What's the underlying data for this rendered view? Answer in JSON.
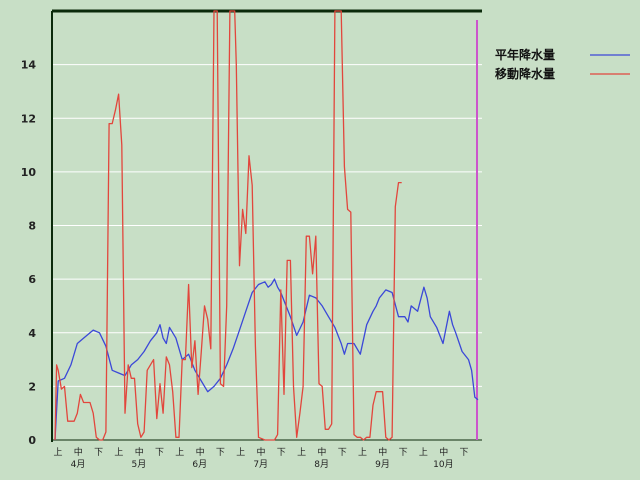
{
  "chart_data": {
    "type": "line",
    "ylim": [
      0,
      16
    ],
    "y_ticks": [
      "0",
      "2",
      "4",
      "6",
      "8",
      "10",
      "12",
      "14"
    ],
    "grid": true,
    "legend_position": "top-right",
    "x_period_labels": [
      "上",
      "中",
      "下",
      "上",
      "中",
      "下",
      "上",
      "中",
      "下",
      "上",
      "中",
      "下",
      "上",
      "中",
      "下",
      "上",
      "中",
      "下",
      "上",
      "中",
      "下"
    ],
    "month_labels": [
      "4月",
      "5月",
      "6月",
      "7月",
      "8月",
      "9月",
      "10月"
    ],
    "series": [
      {
        "name": "平年降水量",
        "color": "#3b48d8",
        "points": [
          [
            0,
            0
          ],
          [
            1,
            2.2
          ],
          [
            3,
            2.3
          ],
          [
            5,
            2.8
          ],
          [
            7,
            3.6
          ],
          [
            9,
            3.8
          ],
          [
            12,
            4.1
          ],
          [
            14,
            4.0
          ],
          [
            16,
            3.5
          ],
          [
            18,
            2.6
          ],
          [
            20,
            2.5
          ],
          [
            22,
            2.4
          ],
          [
            24,
            2.8
          ],
          [
            26,
            3.0
          ],
          [
            28,
            3.3
          ],
          [
            30,
            3.7
          ],
          [
            32,
            4.0
          ],
          [
            33,
            4.3
          ],
          [
            34,
            3.8
          ],
          [
            35,
            3.6
          ],
          [
            36,
            4.2
          ],
          [
            38,
            3.8
          ],
          [
            40,
            3.0
          ],
          [
            42,
            3.2
          ],
          [
            44,
            2.6
          ],
          [
            46,
            2.2
          ],
          [
            48,
            1.8
          ],
          [
            50,
            2.0
          ],
          [
            52,
            2.3
          ],
          [
            54,
            2.8
          ],
          [
            56,
            3.4
          ],
          [
            58,
            4.1
          ],
          [
            60,
            4.8
          ],
          [
            62,
            5.5
          ],
          [
            64,
            5.8
          ],
          [
            66,
            5.9
          ],
          [
            67,
            5.7
          ],
          [
            68,
            5.8
          ],
          [
            69,
            6.0
          ],
          [
            70,
            5.7
          ],
          [
            71,
            5.5
          ],
          [
            72,
            5.2
          ],
          [
            74,
            4.6
          ],
          [
            76,
            3.9
          ],
          [
            78,
            4.4
          ],
          [
            80,
            5.4
          ],
          [
            82,
            5.3
          ],
          [
            84,
            5.0
          ],
          [
            86,
            4.6
          ],
          [
            88,
            4.2
          ],
          [
            90,
            3.6
          ],
          [
            91,
            3.2
          ],
          [
            92,
            3.6
          ],
          [
            94,
            3.6
          ],
          [
            96,
            3.2
          ],
          [
            98,
            4.3
          ],
          [
            100,
            4.8
          ],
          [
            101,
            5.0
          ],
          [
            102,
            5.3
          ],
          [
            104,
            5.6
          ],
          [
            106,
            5.5
          ],
          [
            108,
            4.6
          ],
          [
            110,
            4.6
          ],
          [
            111,
            4.4
          ],
          [
            112,
            5.0
          ],
          [
            114,
            4.8
          ],
          [
            116,
            5.7
          ],
          [
            117,
            5.3
          ],
          [
            118,
            4.6
          ],
          [
            120,
            4.2
          ],
          [
            122,
            3.6
          ],
          [
            124,
            4.8
          ],
          [
            125,
            4.3
          ],
          [
            126,
            4.0
          ],
          [
            128,
            3.3
          ],
          [
            130,
            3.0
          ],
          [
            131,
            2.6
          ],
          [
            132,
            1.6
          ],
          [
            133,
            1.5
          ]
        ]
      },
      {
        "name": "移動降水量",
        "color": "#e2463c",
        "points": [
          [
            0,
            0
          ],
          [
            0.5,
            2.8
          ],
          [
            1,
            2.6
          ],
          [
            2,
            1.9
          ],
          [
            3,
            2.0
          ],
          [
            4,
            0.7
          ],
          [
            6,
            0.7
          ],
          [
            7,
            1.0
          ],
          [
            8,
            1.7
          ],
          [
            9,
            1.4
          ],
          [
            10,
            1.4
          ],
          [
            11,
            1.4
          ],
          [
            12,
            1.0
          ],
          [
            13,
            0.1
          ],
          [
            14,
            0.0
          ],
          [
            15,
            0.0
          ],
          [
            16,
            0.3
          ],
          [
            17,
            11.8
          ],
          [
            18,
            11.8
          ],
          [
            19,
            12.3
          ],
          [
            20,
            12.9
          ],
          [
            21,
            11.0
          ],
          [
            22,
            1.0
          ],
          [
            23,
            2.8
          ],
          [
            24,
            2.3
          ],
          [
            25,
            2.3
          ],
          [
            26,
            0.6
          ],
          [
            27,
            0.1
          ],
          [
            28,
            0.3
          ],
          [
            29,
            2.6
          ],
          [
            30,
            2.8
          ],
          [
            31,
            3.0
          ],
          [
            32,
            0.8
          ],
          [
            33,
            2.1
          ],
          [
            34,
            1.0
          ],
          [
            35,
            3.1
          ],
          [
            36,
            2.8
          ],
          [
            37,
            1.8
          ],
          [
            38,
            0.1
          ],
          [
            39,
            0.1
          ],
          [
            40,
            3.0
          ],
          [
            41,
            3.0
          ],
          [
            42,
            5.8
          ],
          [
            43,
            2.7
          ],
          [
            44,
            3.7
          ],
          [
            45,
            1.7
          ],
          [
            46,
            3.3
          ],
          [
            47,
            5.0
          ],
          [
            48,
            4.5
          ],
          [
            49,
            3.4
          ],
          [
            50,
            17.0
          ],
          [
            51,
            17.0
          ],
          [
            52,
            2.1
          ],
          [
            53,
            2.0
          ],
          [
            54,
            5.0
          ],
          [
            55,
            17.0
          ],
          [
            56,
            17.0
          ],
          [
            56.5,
            16.3
          ],
          [
            57,
            14.0
          ],
          [
            58,
            6.5
          ],
          [
            59,
            8.6
          ],
          [
            60,
            7.7
          ],
          [
            61,
            10.6
          ],
          [
            62,
            9.5
          ],
          [
            63,
            3.5
          ],
          [
            64,
            0.1
          ],
          [
            66,
            0.0
          ],
          [
            68,
            0.0
          ],
          [
            69,
            0.0
          ],
          [
            70,
            0.2
          ],
          [
            71,
            5.6
          ],
          [
            72,
            1.7
          ],
          [
            73,
            6.7
          ],
          [
            74,
            6.7
          ],
          [
            75,
            2.0
          ],
          [
            76,
            0.1
          ],
          [
            77,
            1.0
          ],
          [
            78,
            2.0
          ],
          [
            79,
            7.6
          ],
          [
            80,
            7.6
          ],
          [
            81,
            6.2
          ],
          [
            82,
            7.6
          ],
          [
            83,
            2.1
          ],
          [
            84,
            2.0
          ],
          [
            85,
            0.4
          ],
          [
            86,
            0.4
          ],
          [
            87,
            0.6
          ],
          [
            88,
            16.5
          ],
          [
            89,
            16.8
          ],
          [
            90,
            17.0
          ],
          [
            91,
            10.2
          ],
          [
            92,
            8.6
          ],
          [
            93,
            8.5
          ],
          [
            94,
            0.2
          ],
          [
            95,
            0.1
          ],
          [
            96,
            0.1
          ],
          [
            97,
            0.0
          ],
          [
            98,
            0.1
          ],
          [
            99,
            0.1
          ],
          [
            100,
            1.3
          ],
          [
            101,
            1.8
          ],
          [
            102,
            1.8
          ],
          [
            103,
            1.8
          ],
          [
            104,
            0.1
          ],
          [
            105,
            0.0
          ],
          [
            106,
            0.1
          ],
          [
            107,
            8.7
          ],
          [
            108,
            9.6
          ],
          [
            109,
            9.6
          ]
        ]
      }
    ]
  }
}
